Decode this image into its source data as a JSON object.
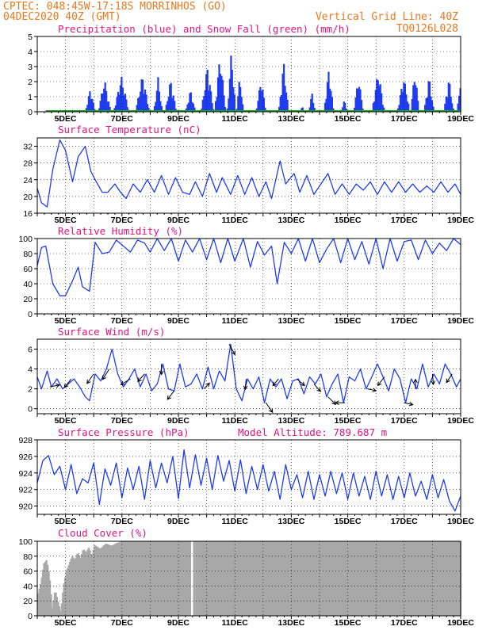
{
  "header": {
    "line1_left": "CPTEC:  048:45W-17:18S  MORRINHOS (GO)",
    "line2_left": "04DEC2020 40Z (GMT)",
    "line2_right": "Vertical Grid Line: 40Z",
    "line3_right": "TQ0126L028"
  },
  "colors": {
    "header": "#e8781f",
    "title": "#e0137f",
    "precip": "#1f3cf0",
    "snow": "#19a519",
    "line": "#1f3cf0",
    "wind_arrow": "#000000",
    "cloud": "#a8a8a8",
    "grid": "#000000"
  },
  "chart_data": [
    {
      "type": "bar",
      "title": "Precipitation (blue) and Snow Fall (green) (mm/h)",
      "ylim": [
        0,
        5
      ],
      "yticks": [
        0,
        1,
        2,
        3,
        4,
        5
      ],
      "xrange_days": [
        4.0,
        19.0
      ],
      "xtick_labels": [
        "5DEC",
        "7DEC",
        "9DEC",
        "11DEC",
        "13DEC",
        "15DEC",
        "17DEC",
        "19DEC"
      ],
      "xtick_days": [
        5,
        7,
        9,
        11,
        13,
        15,
        17,
        19
      ],
      "grid": true,
      "series": [
        {
          "key": "precipitation",
          "events": [
            {
              "day": 5.85,
              "width": 0.35,
              "peak": 1.6
            },
            {
              "day": 6.35,
              "width": 0.45,
              "peak": 2.2
            },
            {
              "day": 6.95,
              "width": 0.55,
              "peak": 2.4
            },
            {
              "day": 7.7,
              "width": 0.5,
              "peak": 2.5
            },
            {
              "day": 8.25,
              "width": 0.3,
              "peak": 2.3
            },
            {
              "day": 8.7,
              "width": 0.4,
              "peak": 2.2
            },
            {
              "day": 9.4,
              "width": 0.35,
              "peak": 1.5
            },
            {
              "day": 10.0,
              "width": 0.45,
              "peak": 3.1
            },
            {
              "day": 10.45,
              "width": 0.4,
              "peak": 3.9
            },
            {
              "day": 10.85,
              "width": 0.3,
              "peak": 4.2
            },
            {
              "day": 11.15,
              "width": 0.25,
              "peak": 2.5
            },
            {
              "day": 11.9,
              "width": 0.35,
              "peak": 2.3
            },
            {
              "day": 12.7,
              "width": 0.35,
              "peak": 3.4
            },
            {
              "day": 13.35,
              "width": 0.15,
              "peak": 0.5
            },
            {
              "day": 13.7,
              "width": 0.25,
              "peak": 1.3
            },
            {
              "day": 14.3,
              "width": 0.35,
              "peak": 2.9
            },
            {
              "day": 14.85,
              "width": 0.25,
              "peak": 0.8
            },
            {
              "day": 15.35,
              "width": 0.35,
              "peak": 2.4
            },
            {
              "day": 16.05,
              "width": 0.45,
              "peak": 2.8
            },
            {
              "day": 16.95,
              "width": 0.45,
              "peak": 2.4
            },
            {
              "day": 17.35,
              "width": 0.3,
              "peak": 2.9
            },
            {
              "day": 17.85,
              "width": 0.35,
              "peak": 2.4
            },
            {
              "day": 18.55,
              "width": 0.35,
              "peak": 2.3
            },
            {
              "day": 18.95,
              "width": 0.2,
              "peak": 2.2
            }
          ]
        },
        {
          "key": "snowfall",
          "constant": 0
        }
      ]
    },
    {
      "type": "line",
      "title": "Surface Temperature (nC)",
      "ylim": [
        16,
        34
      ],
      "yticks": [
        16,
        20,
        24,
        28,
        32
      ],
      "xrange_days": [
        4.0,
        19.0
      ],
      "xtick_labels": [
        "5DEC",
        "7DEC",
        "9DEC",
        "11DEC",
        "13DEC",
        "15DEC",
        "17DEC",
        "19DEC"
      ],
      "xtick_days": [
        5,
        7,
        9,
        11,
        13,
        15,
        17,
        19
      ],
      "grid": true,
      "x": [
        4.0,
        4.15,
        4.35,
        4.55,
        4.8,
        5.0,
        5.25,
        5.45,
        5.7,
        5.9,
        6.05,
        6.3,
        6.5,
        6.75,
        6.95,
        7.15,
        7.4,
        7.65,
        7.9,
        8.15,
        8.4,
        8.65,
        8.9,
        9.15,
        9.4,
        9.6,
        9.85,
        10.1,
        10.35,
        10.55,
        10.85,
        11.1,
        11.35,
        11.6,
        11.85,
        12.1,
        12.3,
        12.6,
        12.8,
        13.1,
        13.3,
        13.55,
        13.8,
        14.05,
        14.3,
        14.55,
        14.8,
        15.05,
        15.3,
        15.55,
        15.8,
        16.05,
        16.3,
        16.55,
        16.8,
        17.05,
        17.3,
        17.55,
        17.8,
        18.05,
        18.3,
        18.55,
        18.8,
        19.0
      ],
      "y": [
        22,
        18.5,
        17.5,
        26.5,
        33.5,
        31,
        23.5,
        29.5,
        32,
        26,
        24,
        21,
        21,
        23,
        21,
        19.5,
        23,
        21,
        24,
        21,
        25,
        20.5,
        24.5,
        21,
        20.5,
        23.5,
        20,
        25.5,
        21,
        24.5,
        20.5,
        25,
        20.5,
        24.5,
        20,
        23.5,
        19.5,
        28.5,
        23,
        25.5,
        21,
        25,
        20.5,
        23,
        25.5,
        20.5,
        23,
        20.5,
        23,
        21.5,
        23.5,
        20.5,
        23.5,
        21,
        23.5,
        21,
        23,
        21,
        22.5,
        21,
        23.5,
        21,
        23,
        20.5
      ]
    },
    {
      "type": "line",
      "title": "Relative Humidity (%)",
      "ylim": [
        0,
        100
      ],
      "yticks": [
        0,
        20,
        40,
        60,
        80,
        100
      ],
      "xrange_days": [
        4.0,
        19.0
      ],
      "xtick_labels": [
        "5DEC",
        "7DEC",
        "9DEC",
        "11DEC",
        "13DEC",
        "15DEC",
        "17DEC",
        "19DEC"
      ],
      "xtick_days": [
        5,
        7,
        9,
        11,
        13,
        15,
        17,
        19
      ],
      "grid": true,
      "x": [
        4.0,
        4.15,
        4.3,
        4.55,
        4.8,
        5.0,
        5.25,
        5.45,
        5.6,
        5.85,
        6.05,
        6.3,
        6.55,
        6.8,
        7.05,
        7.3,
        7.55,
        7.8,
        8.0,
        8.25,
        8.5,
        8.75,
        9.0,
        9.25,
        9.5,
        9.75,
        10.0,
        10.25,
        10.5,
        10.75,
        11.0,
        11.3,
        11.55,
        11.8,
        12.05,
        12.3,
        12.5,
        12.75,
        13.0,
        13.25,
        13.5,
        13.75,
        14.0,
        14.25,
        14.5,
        14.75,
        15.0,
        15.25,
        15.5,
        15.75,
        16.0,
        16.25,
        16.5,
        16.75,
        17.0,
        17.25,
        17.5,
        17.75,
        18.0,
        18.25,
        18.5,
        18.75,
        19.0
      ],
      "y": [
        64,
        88,
        90,
        40,
        24,
        24,
        44,
        62,
        36,
        30,
        95,
        80,
        82,
        98,
        90,
        82,
        98,
        94,
        82,
        100,
        84,
        100,
        70,
        98,
        82,
        100,
        72,
        100,
        68,
        100,
        70,
        100,
        62,
        96,
        78,
        90,
        40,
        95,
        80,
        100,
        70,
        100,
        68,
        86,
        100,
        68,
        100,
        72,
        96,
        66,
        100,
        60,
        100,
        70,
        96,
        98,
        72,
        98,
        80,
        94,
        84,
        100,
        92
      ]
    },
    {
      "type": "line",
      "title": "Surface Wind (m/s)",
      "ylim": [
        -0.5,
        7.0
      ],
      "yticks": [
        0,
        2,
        4,
        6
      ],
      "xrange_days": [
        4.0,
        19.0
      ],
      "xtick_labels": [
        "5DEC",
        "7DEC",
        "9DEC",
        "11DEC",
        "13DEC",
        "15DEC",
        "17DEC",
        "19DEC"
      ],
      "xtick_days": [
        5,
        7,
        9,
        11,
        13,
        15,
        17,
        19
      ],
      "grid": true,
      "x": [
        4.0,
        4.15,
        4.35,
        4.5,
        4.7,
        4.9,
        5.1,
        5.3,
        5.5,
        5.7,
        5.85,
        6.05,
        6.25,
        6.45,
        6.65,
        6.85,
        7.05,
        7.25,
        7.45,
        7.65,
        7.85,
        8.05,
        8.25,
        8.45,
        8.65,
        8.85,
        9.05,
        9.25,
        9.45,
        9.65,
        9.85,
        10.05,
        10.25,
        10.45,
        10.65,
        10.85,
        11.05,
        11.25,
        11.45,
        11.65,
        11.85,
        12.05,
        12.25,
        12.45,
        12.65,
        12.85,
        13.05,
        13.25,
        13.45,
        13.65,
        13.85,
        14.05,
        14.25,
        14.45,
        14.65,
        14.85,
        15.05,
        15.25,
        15.45,
        15.65,
        15.85,
        16.05,
        16.25,
        16.45,
        16.65,
        16.85,
        17.05,
        17.25,
        17.45,
        17.65,
        17.85,
        18.05,
        18.25,
        18.45,
        18.65,
        18.85,
        19.0
      ],
      "y": [
        3.2,
        2.0,
        3.8,
        2.2,
        3.0,
        2.0,
        2.5,
        3.0,
        2.2,
        1.2,
        0.8,
        3.5,
        2.8,
        4.0,
        6.0,
        3.5,
        2.2,
        3.0,
        4.0,
        2.2,
        3.5,
        1.8,
        2.5,
        4.5,
        2.0,
        1.8,
        4.5,
        2.2,
        2.5,
        3.5,
        2.0,
        4.2,
        2.0,
        3.8,
        2.8,
        6.5,
        2.0,
        0.8,
        3.0,
        2.0,
        3.2,
        0.6,
        3.0,
        2.2,
        3.0,
        1.0,
        2.8,
        3.0,
        1.5,
        3.2,
        2.5,
        3.5,
        1.2,
        2.5,
        3.5,
        0.6,
        3.2,
        2.8,
        4.0,
        2.0,
        3.2,
        4.5,
        3.2,
        1.8,
        4.0,
        3.0,
        0.6,
        3.0,
        2.0,
        4.5,
        2.2,
        3.5,
        2.5,
        4.5,
        3.5,
        2.2,
        3.0
      ],
      "vectors": [
        {
          "day": 4.45,
          "dx": 0.5,
          "dy": 0.1
        },
        {
          "day": 5.2,
          "dx": -0.35,
          "dy": -0.45
        },
        {
          "day": 6.0,
          "dx": -0.35,
          "dy": -0.5
        },
        {
          "day": 6.55,
          "dx": -0.35,
          "dy": -0.55
        },
        {
          "day": 7.3,
          "dx": -0.5,
          "dy": -0.3
        },
        {
          "day": 7.8,
          "dx": -0.35,
          "dy": -0.4
        },
        {
          "day": 8.4,
          "dx": 0.0,
          "dy": -0.55
        },
        {
          "day": 8.85,
          "dx": -0.35,
          "dy": -0.45
        },
        {
          "day": 9.9,
          "dx": 0.3,
          "dy": 0.3
        },
        {
          "day": 10.8,
          "dx": 0.3,
          "dy": -0.55
        },
        {
          "day": 11.4,
          "dx": -0.05,
          "dy": -0.55
        },
        {
          "day": 12.1,
          "dx": 0.35,
          "dy": -0.5
        },
        {
          "day": 12.55,
          "dx": -0.3,
          "dy": -0.35
        },
        {
          "day": 13.2,
          "dx": 0.4,
          "dy": -0.35
        },
        {
          "day": 13.8,
          "dx": 0.35,
          "dy": -0.4
        },
        {
          "day": 14.3,
          "dx": 0.4,
          "dy": -0.4
        },
        {
          "day": 14.9,
          "dx": -0.5,
          "dy": 0.0
        },
        {
          "day": 15.7,
          "dx": 0.45,
          "dy": -0.1
        },
        {
          "day": 16.3,
          "dx": -0.35,
          "dy": -0.45
        },
        {
          "day": 17.0,
          "dx": 0.45,
          "dy": -0.1
        },
        {
          "day": 17.4,
          "dx": 0.0,
          "dy": 0.5
        },
        {
          "day": 18.0,
          "dx": 0.05,
          "dy": -0.55
        },
        {
          "day": 18.7,
          "dx": -0.3,
          "dy": -0.45
        }
      ]
    },
    {
      "type": "line",
      "title": "Surface Pressure (hPa)",
      "annotation": "Model Altitude: 789.687  m",
      "ylim": [
        919,
        928
      ],
      "yticks": [
        920,
        922,
        924,
        926,
        928
      ],
      "xrange_days": [
        4.0,
        19.0
      ],
      "xtick_labels": [
        "5DEC",
        "7DEC",
        "9DEC",
        "11DEC",
        "13DEC",
        "15DEC",
        "17DEC",
        "19DEC"
      ],
      "xtick_days": [
        5,
        7,
        9,
        11,
        13,
        15,
        17,
        19
      ],
      "grid": true,
      "x": [
        4.0,
        4.2,
        4.4,
        4.6,
        4.8,
        5.0,
        5.2,
        5.4,
        5.6,
        5.8,
        6.0,
        6.2,
        6.4,
        6.6,
        6.8,
        7.0,
        7.2,
        7.4,
        7.6,
        7.8,
        8.0,
        8.2,
        8.4,
        8.6,
        8.8,
        9.0,
        9.2,
        9.4,
        9.6,
        9.8,
        10.0,
        10.2,
        10.4,
        10.6,
        10.8,
        11.0,
        11.2,
        11.4,
        11.6,
        11.8,
        12.0,
        12.2,
        12.4,
        12.6,
        12.8,
        13.0,
        13.2,
        13.4,
        13.6,
        13.8,
        14.0,
        14.2,
        14.4,
        14.6,
        14.8,
        15.0,
        15.2,
        15.4,
        15.6,
        15.8,
        16.0,
        16.2,
        16.4,
        16.6,
        16.8,
        17.0,
        17.2,
        17.4,
        17.6,
        17.8,
        18.0,
        18.2,
        18.4,
        18.6,
        18.8,
        19.0
      ],
      "y": [
        922.8,
        925.5,
        926.1,
        923.8,
        924.8,
        922.0,
        925.0,
        921.5,
        923.3,
        922.8,
        925.2,
        920.2,
        924.5,
        922.5,
        925.2,
        921.0,
        924.6,
        922.0,
        924.8,
        920.8,
        925.5,
        922.2,
        925.2,
        922.8,
        926.0,
        920.9,
        926.8,
        922.2,
        926.2,
        922.5,
        925.8,
        922.0,
        926.1,
        923.0,
        925.5,
        921.8,
        925.6,
        921.5,
        924.8,
        922.0,
        925.0,
        921.8,
        924.2,
        920.8,
        925.0,
        922.0,
        923.8,
        921.0,
        924.2,
        920.8,
        923.8,
        921.2,
        924.2,
        921.5,
        924.0,
        920.8,
        924.0,
        921.2,
        923.6,
        920.8,
        924.2,
        921.2,
        923.8,
        920.8,
        923.6,
        921.0,
        924.0,
        921.2,
        923.0,
        920.8,
        923.8,
        921.0,
        923.2,
        920.6,
        919.4,
        921.2
      ]
    },
    {
      "type": "area",
      "title": "Cloud Cover (%)",
      "ylim": [
        0,
        100
      ],
      "yticks": [
        0,
        20,
        40,
        60,
        80,
        100
      ],
      "xrange_days": [
        4.0,
        19.0
      ],
      "xtick_labels": [
        "5DEC",
        "7DEC",
        "9DEC",
        "11DEC",
        "13DEC",
        "15DEC",
        "17DEC",
        "19DEC"
      ],
      "xtick_days": [
        5,
        7,
        9,
        11,
        13,
        15,
        17,
        19
      ],
      "grid": true,
      "x": [
        4.0,
        4.1,
        4.2,
        4.3,
        4.4,
        4.5,
        4.6,
        4.7,
        4.8,
        4.9,
        5.0,
        5.1,
        5.2,
        5.3,
        5.4,
        5.5,
        5.6,
        5.7,
        5.8,
        5.9,
        6.0,
        6.2,
        6.4,
        6.6,
        6.8,
        7.0,
        19.0
      ],
      "y": [
        30,
        45,
        70,
        75,
        55,
        10,
        35,
        20,
        5,
        40,
        60,
        70,
        80,
        75,
        85,
        78,
        90,
        85,
        92,
        80,
        95,
        90,
        97,
        94,
        98,
        100,
        100
      ]
    }
  ]
}
